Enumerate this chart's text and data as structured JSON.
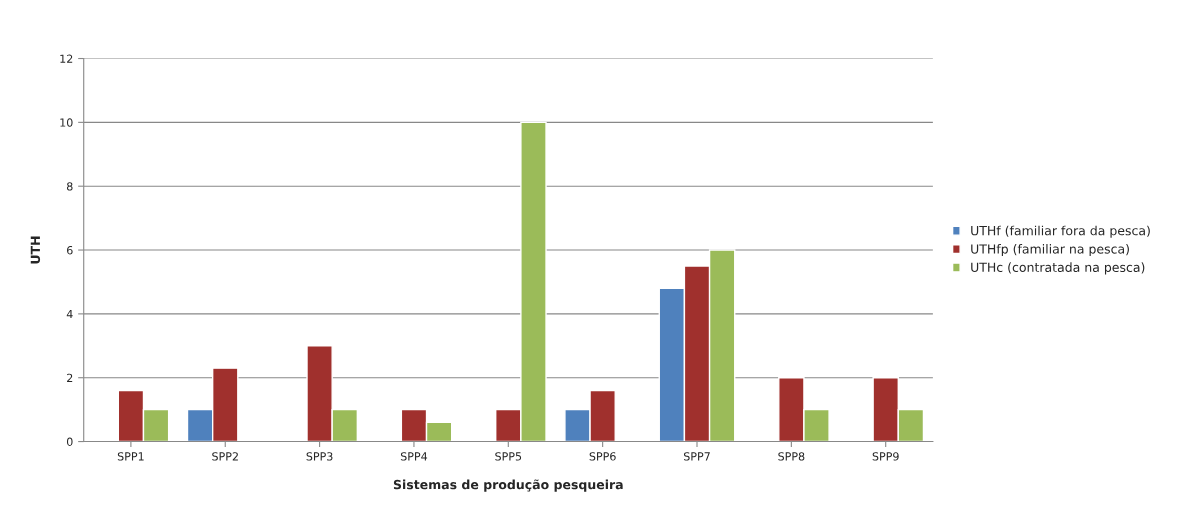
{
  "chart_data": {
    "type": "bar",
    "xlabel": "Sistemas de produção pesqueira",
    "ylabel": "UTH",
    "categories": [
      "SPP1",
      "SPP2",
      "SPP3",
      "SPP4",
      "SPP5",
      "SPP6",
      "SPP7",
      "SPP8",
      "SPP9"
    ],
    "series": [
      {
        "name": "UTHf (familiar fora da pesca)",
        "color": "#4f81bd",
        "values": [
          null,
          1,
          null,
          null,
          null,
          1,
          4.8,
          null,
          null
        ]
      },
      {
        "name": "UTHfp (familiar na pesca)",
        "color": "#a0302d",
        "values": [
          1.6,
          2.3,
          3,
          1,
          1,
          1.6,
          5.5,
          2,
          2
        ]
      },
      {
        "name": "UTHc (contratada na pesca)",
        "color": "#9bbb59",
        "values": [
          1,
          null,
          1,
          0.6,
          10,
          null,
          6,
          1,
          1
        ]
      }
    ],
    "ylim": [
      0,
      12
    ],
    "yticks": [
      0,
      2,
      4,
      6,
      8,
      10,
      12
    ],
    "grid": "y",
    "legend": "right"
  }
}
